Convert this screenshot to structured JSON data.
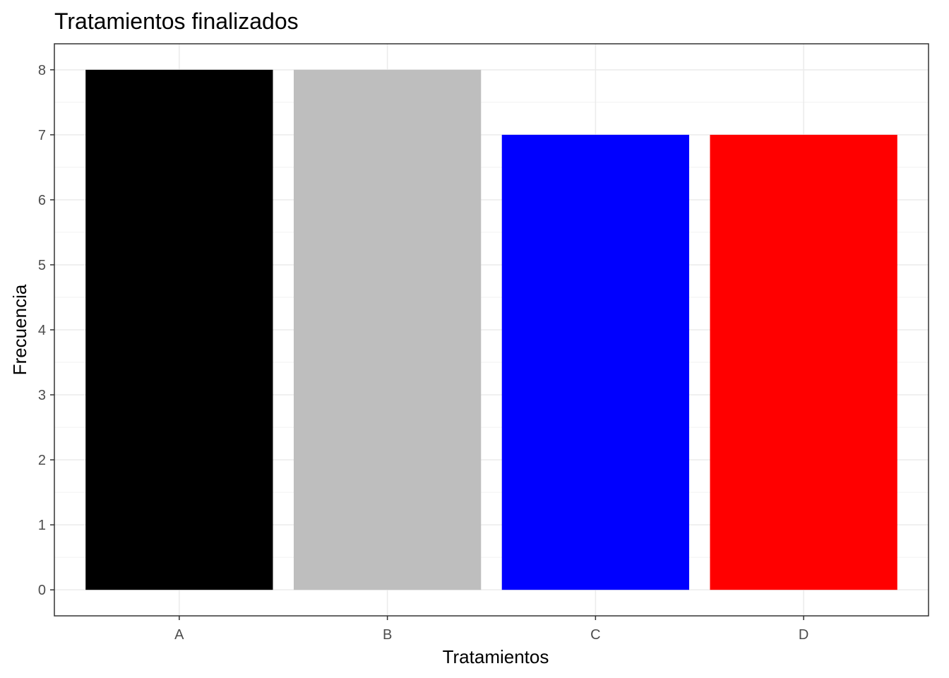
{
  "chart_data": {
    "type": "bar",
    "title": "Tratamientos finalizados",
    "xlabel": "Tratamientos",
    "ylabel": "Frecuencia",
    "categories": [
      "A",
      "B",
      "C",
      "D"
    ],
    "values": [
      8,
      8,
      7,
      7
    ],
    "colors": [
      "#000000",
      "#bebebe",
      "#0000ff",
      "#ff0000"
    ],
    "yticks": [
      0,
      1,
      2,
      3,
      4,
      5,
      6,
      7,
      8
    ],
    "ylim": [
      -0.4,
      8.4
    ],
    "grid": true,
    "legend": "none"
  }
}
